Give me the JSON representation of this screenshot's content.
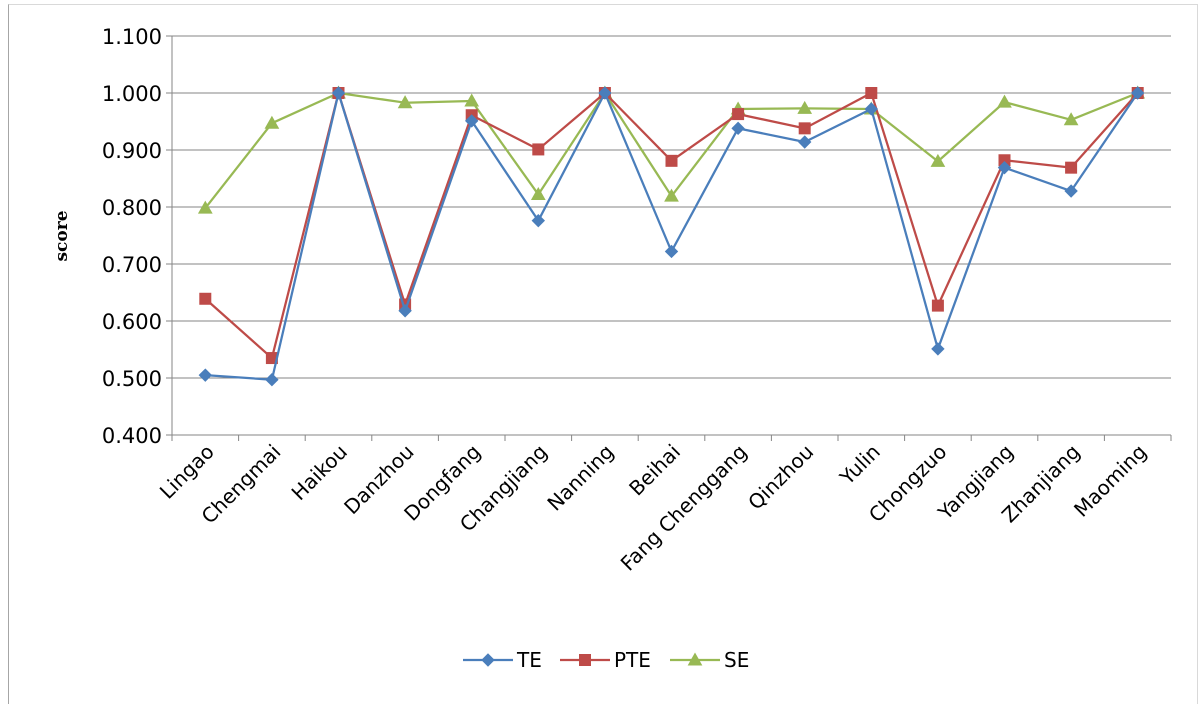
{
  "chart_data": {
    "type": "line",
    "title": "",
    "xlabel": "",
    "ylabel": "score",
    "ylim": [
      0.4,
      1.1
    ],
    "yticks": [
      "0.400",
      "0.500",
      "0.600",
      "0.700",
      "0.800",
      "0.900",
      "1.000",
      "1.100"
    ],
    "grid": true,
    "legend_position": "bottom",
    "categories": [
      "Lingao",
      "Chengmai",
      "Haikou",
      "Danzhou",
      "Dongfang",
      "Changjiang",
      "Nanning",
      "Beihai",
      "Fang Chenggang",
      "Qinzhou",
      "Yulin",
      "Chongzuo",
      "Yangjiang",
      "Zhanjiang",
      "Maoming"
    ],
    "series": [
      {
        "name": "TE",
        "color": "#4a7ebb",
        "marker": "diamond",
        "values": [
          0.505,
          0.497,
          1.0,
          0.618,
          0.951,
          0.776,
          1.0,
          0.722,
          0.938,
          0.914,
          0.972,
          0.551,
          0.869,
          0.828,
          1.0
        ]
      },
      {
        "name": "PTE",
        "color": "#be4b48",
        "marker": "square",
        "values": [
          0.639,
          0.535,
          1.0,
          0.629,
          0.961,
          0.901,
          1.0,
          0.881,
          0.963,
          0.938,
          1.0,
          0.627,
          0.882,
          0.869,
          1.0
        ]
      },
      {
        "name": "SE",
        "color": "#98b954",
        "marker": "triangle",
        "values": [
          0.798,
          0.947,
          1.0,
          0.983,
          0.986,
          0.822,
          1.0,
          0.819,
          0.972,
          0.973,
          0.972,
          0.88,
          0.984,
          0.953,
          1.0
        ]
      }
    ]
  }
}
